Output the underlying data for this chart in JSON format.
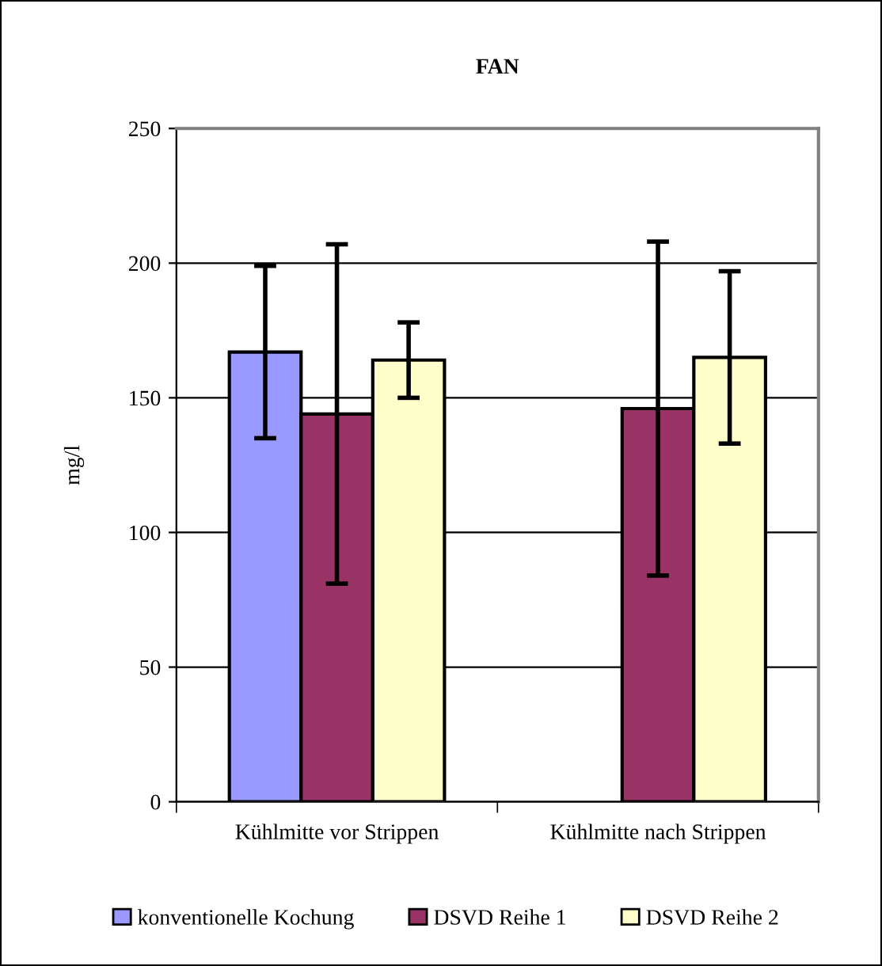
{
  "chart_data": {
    "type": "bar",
    "title": "FAN",
    "ylabel": "mg/l",
    "categories": [
      "Kühlmitte vor Strippen",
      "Kühlmitte nach Strippen"
    ],
    "series": [
      {
        "name": "konventionelle Kochung",
        "color": "#9999ff",
        "values": [
          167,
          null
        ],
        "errors": [
          32,
          null
        ]
      },
      {
        "name": "DSVD Reihe 1",
        "color": "#993366",
        "values": [
          144,
          146
        ],
        "errors": [
          63,
          62
        ]
      },
      {
        "name": "DSVD Reihe 2",
        "color": "#ffffcc",
        "values": [
          164,
          165
        ],
        "errors": [
          14,
          32
        ]
      }
    ],
    "ylim": [
      0,
      250
    ],
    "yticks": [
      0,
      50,
      100,
      150,
      200,
      250
    ],
    "grid": "y",
    "legend": "bottom"
  }
}
